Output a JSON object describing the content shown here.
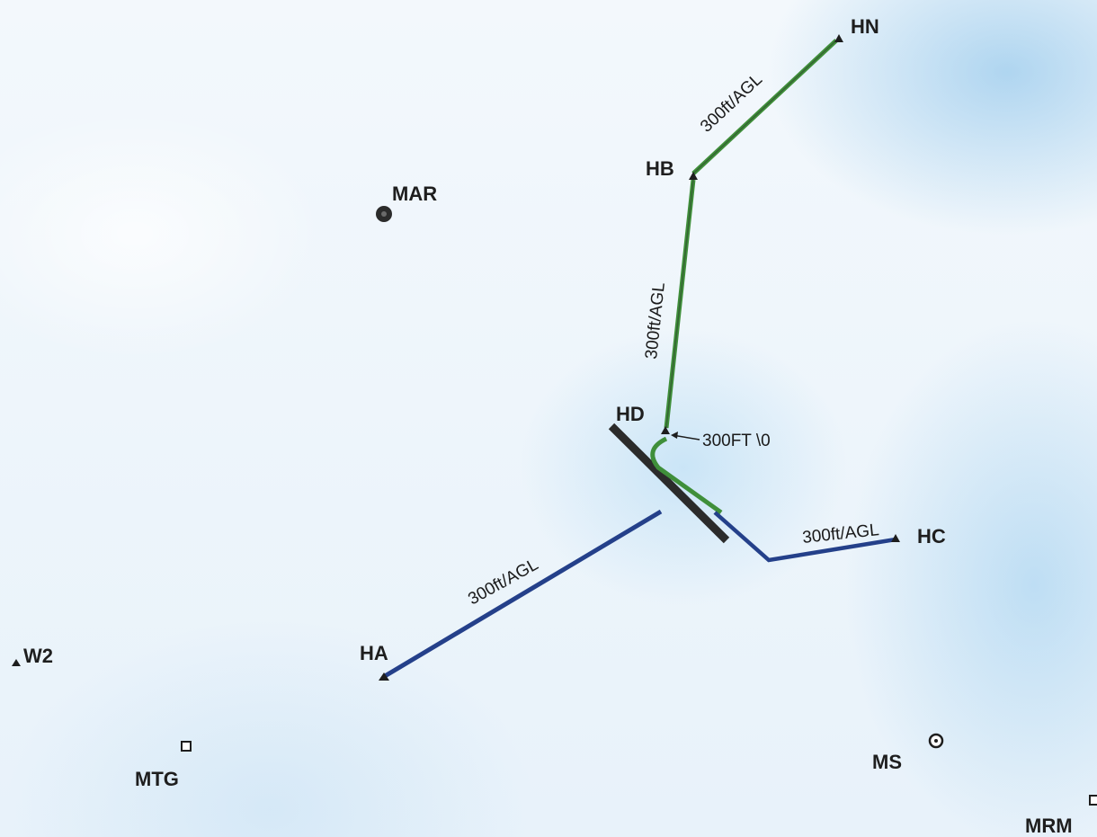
{
  "map": {
    "waypoints": {
      "hn": "HN",
      "hb": "HB",
      "hd": "HD",
      "hc": "HC",
      "ha": "HA",
      "w2": "W2",
      "mar": "MAR",
      "mtg": "MTG",
      "ms": "MS",
      "mrm": "MRM"
    },
    "segment_labels": {
      "hb_hn": "300ft/AGL",
      "hd_hb": "300ft/AGL",
      "hd_callout": "300FT \\0",
      "hd_hc": "300ft/AGL",
      "hd_ha": "300ft/AGL"
    },
    "colors": {
      "green_route": "#3f8f3a",
      "blue_route": "#24408a",
      "runway": "#2b2b2b",
      "label": "#1e1e1e"
    }
  }
}
